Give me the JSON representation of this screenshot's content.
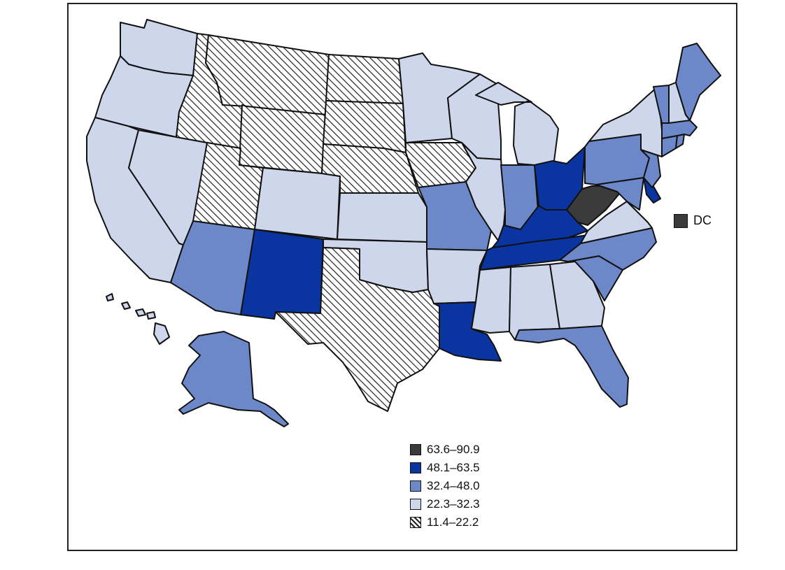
{
  "colors": {
    "c1": "#3b3b3b",
    "c2": "#0a35a0",
    "c3": "#6d88c8",
    "c4": "#cdd6ea",
    "c5_hatch_fg": "#222222",
    "c5_hatch_bg": "#ffffff"
  },
  "legend": {
    "items": [
      {
        "label": "63.6–90.9",
        "class": "c1"
      },
      {
        "label": "48.1–63.5",
        "class": "c2"
      },
      {
        "label": "32.4–48.0",
        "class": "c3"
      },
      {
        "label": "22.3–32.3",
        "class": "c4"
      },
      {
        "label": "11.4–22.2",
        "class": "c5"
      }
    ]
  },
  "dc": {
    "label": "DC",
    "class": "c1"
  },
  "states": {
    "WA": "c4",
    "OR": "c4",
    "CA": "c4",
    "NV": "c4",
    "ID": "c5",
    "MT": "c5",
    "WY": "c5",
    "UT": "c5",
    "CO": "c4",
    "AZ": "c3",
    "NM": "c2",
    "ND": "c5",
    "SD": "c5",
    "NE": "c5",
    "KS": "c4",
    "OK": "c4",
    "TX": "c5",
    "MN": "c4",
    "IA": "c5",
    "MO": "c3",
    "AR": "c4",
    "LA": "c2",
    "WI": "c4",
    "IL": "c4",
    "MI": "c4",
    "IN": "c3",
    "OH": "c2",
    "KY": "c2",
    "TN": "c2",
    "MS": "c4",
    "AL": "c4",
    "GA": "c4",
    "FL": "c3",
    "SC": "c3",
    "NC": "c3",
    "VA": "c4",
    "WV": "c1",
    "MD": "c3",
    "DE": "c2",
    "PA": "c3",
    "NJ": "c3",
    "NY": "c4",
    "CT": "c3",
    "RI": "c3",
    "MA": "c3",
    "VT": "c3",
    "NH": "c4",
    "ME": "c3",
    "AK": "c3",
    "HI": "c4"
  }
}
